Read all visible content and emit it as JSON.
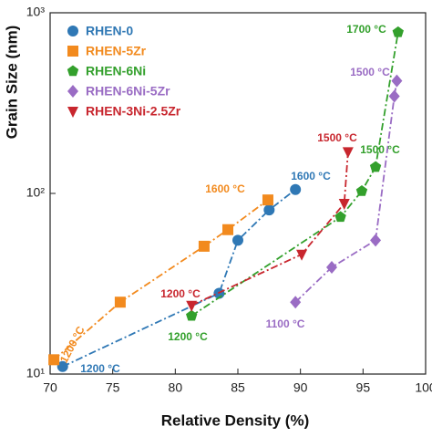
{
  "chart_data": {
    "type": "line",
    "xlabel": "Relative Density (%)",
    "ylabel": "Grain Size (nm)",
    "log_y": true,
    "xlim": [
      70,
      100
    ],
    "xticks": [
      70,
      75,
      80,
      85,
      90,
      95,
      100
    ],
    "ylim": [
      10,
      1000
    ],
    "yticks": [
      {
        "value": 10,
        "label": "10¹"
      },
      {
        "value": 100,
        "label": "10²"
      },
      {
        "value": 1000,
        "label": "10³"
      }
    ],
    "legend": "upper left",
    "series": [
      {
        "name": "RHEN-0",
        "color": "#2f78b5",
        "marker": "circle",
        "x": [
          71,
          83.5,
          85,
          87.5,
          89.6
        ],
        "values": [
          11,
          28,
          55,
          81,
          105
        ]
      },
      {
        "name": "RHEN-5Zr",
        "color": "#f28a1e",
        "marker": "square",
        "x": [
          70.3,
          75.6,
          82.3,
          84.2,
          87.4
        ],
        "values": [
          12,
          25,
          51,
          63,
          92
        ]
      },
      {
        "name": "RHEN-6Ni",
        "color": "#33a02c",
        "marker": "pentagon",
        "x": [
          81.3,
          93.2,
          94.9,
          96,
          97.8
        ],
        "values": [
          21,
          74,
          103,
          140,
          780
        ]
      },
      {
        "name": "RHEN-6Ni-5Zr",
        "color": "#9a6cc4",
        "marker": "diamond",
        "x": [
          89.6,
          92.5,
          96,
          97.5,
          97.7
        ],
        "values": [
          25,
          39,
          55,
          345,
          420
        ]
      },
      {
        "name": "RHEN-3Ni-2.5Zr",
        "color": "#c8262e",
        "marker": "triangle-down",
        "x": [
          81.3,
          90.1,
          93.5,
          93.8
        ],
        "values": [
          24,
          46,
          88,
          170
        ]
      }
    ],
    "annotations": [
      {
        "text": "1200 °C",
        "series": 1
      },
      {
        "text": "1200 °C",
        "series": 0
      },
      {
        "text": "1200 °C",
        "series": 4
      },
      {
        "text": "1200 °C",
        "series": 2
      },
      {
        "text": "1600 °C",
        "series": 1
      },
      {
        "text": "1600 °C",
        "series": 0
      },
      {
        "text": "1100 °C",
        "series": 3
      },
      {
        "text": "1500 °C",
        "series": 4
      },
      {
        "text": "1500 °C",
        "series": 2
      },
      {
        "text": "1500 °C",
        "series": 3
      },
      {
        "text": "1700 °C",
        "series": 2
      }
    ]
  }
}
